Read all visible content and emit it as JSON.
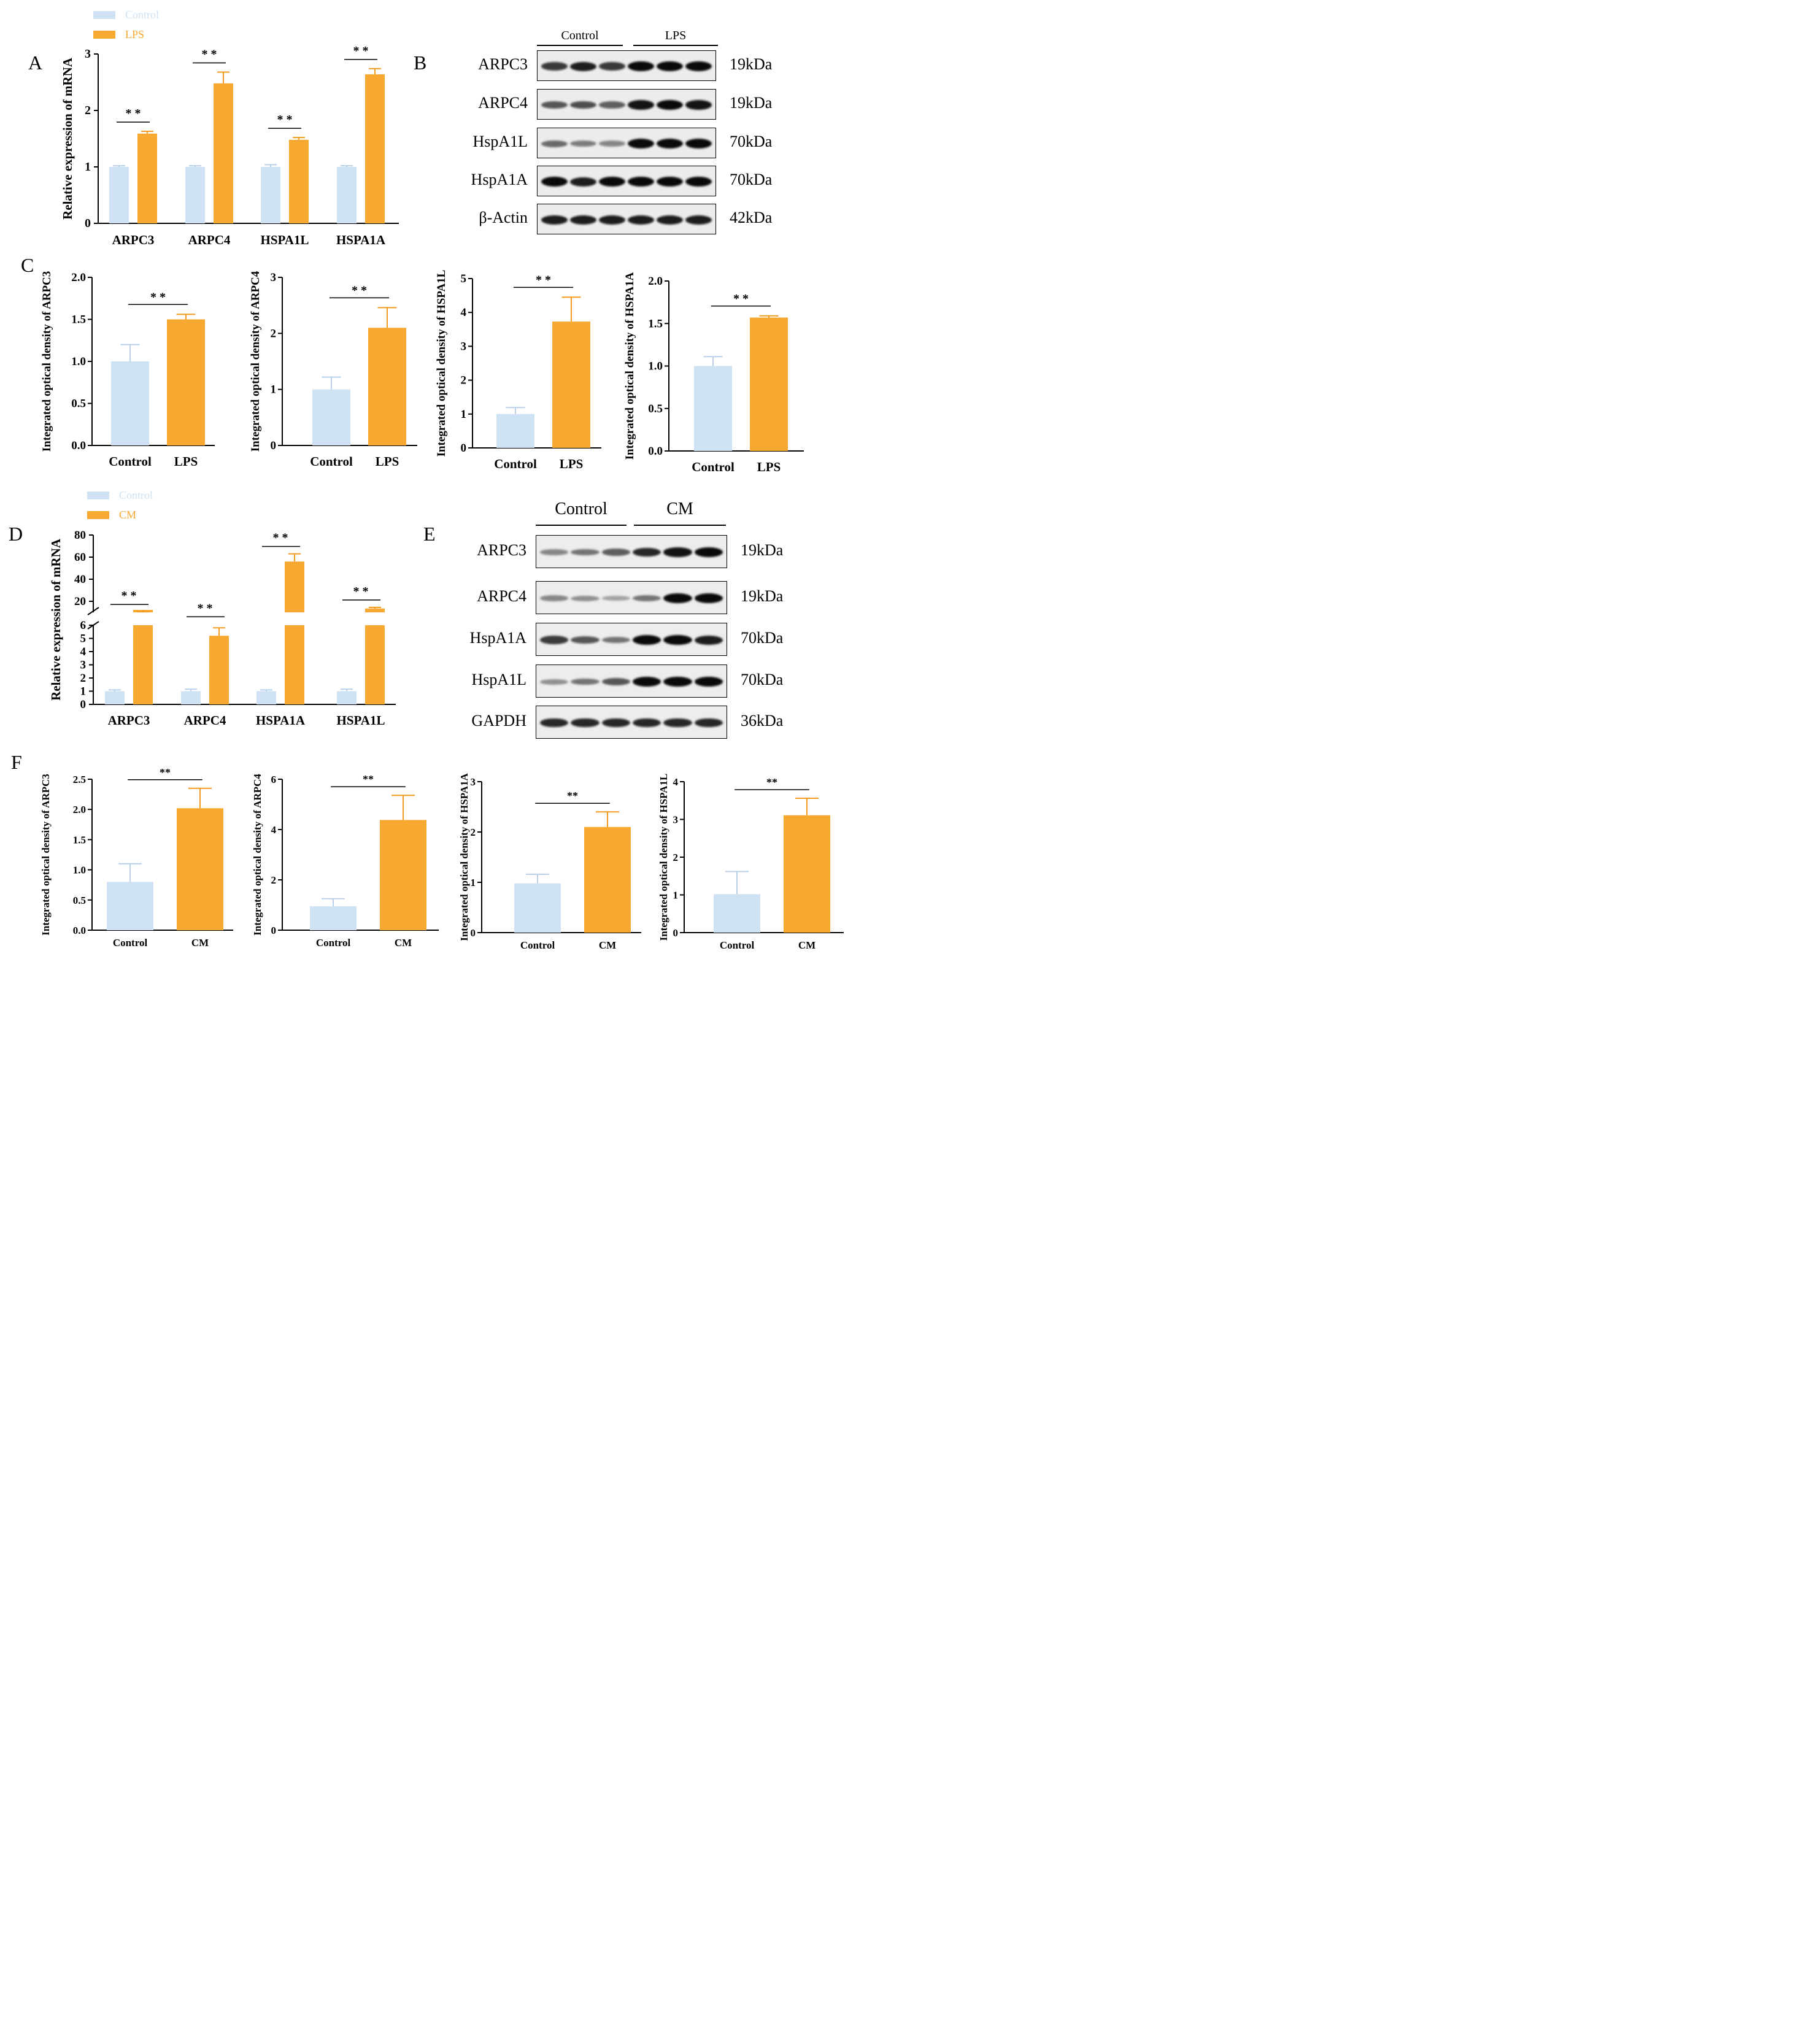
{
  "colors": {
    "control": "#cfe2f3",
    "treatment": "#f7a831",
    "axis": "#000000"
  },
  "panels": {
    "A": {
      "letter": "A",
      "legend": [
        "Control",
        "LPS"
      ]
    },
    "B": {
      "letter": "B",
      "groups": [
        "Control",
        "LPS"
      ],
      "rows": [
        {
          "protein": "ARPC3",
          "kda": "19kDa"
        },
        {
          "protein": "ARPC4",
          "kda": "19kDa"
        },
        {
          "protein": "HspA1L",
          "kda": "70kDa"
        },
        {
          "protein": "HspA1A",
          "kda": "70kDa"
        },
        {
          "protein": "β-Actin",
          "kda": "42kDa"
        }
      ],
      "intensities": [
        [
          0.75,
          0.9,
          0.75,
          1.0,
          1.0,
          1.0
        ],
        [
          0.6,
          0.65,
          0.55,
          0.95,
          1.0,
          0.95
        ],
        [
          0.5,
          0.4,
          0.35,
          1.0,
          1.0,
          1.0
        ],
        [
          1.0,
          0.9,
          1.0,
          1.0,
          1.0,
          1.0
        ],
        [
          0.9,
          0.9,
          0.9,
          0.9,
          0.9,
          0.9
        ]
      ]
    },
    "C": {
      "letter": "C"
    },
    "D": {
      "letter": "D",
      "legend": [
        "Control",
        "CM"
      ]
    },
    "E": {
      "letter": "E",
      "groups": [
        "Control",
        "CM"
      ],
      "rows": [
        {
          "protein": "ARPC3",
          "kda": "19kDa"
        },
        {
          "protein": "ARPC4",
          "kda": "19kDa"
        },
        {
          "protein": "HspA1A",
          "kda": "70kDa"
        },
        {
          "protein": "HspA1L",
          "kda": "70kDa"
        },
        {
          "protein": "GAPDH",
          "kda": "36kDa"
        }
      ],
      "intensities": [
        [
          0.35,
          0.45,
          0.55,
          0.85,
          0.95,
          1.0
        ],
        [
          0.35,
          0.3,
          0.2,
          0.45,
          1.0,
          1.0
        ],
        [
          0.75,
          0.6,
          0.45,
          1.0,
          1.0,
          0.9
        ],
        [
          0.3,
          0.45,
          0.6,
          1.0,
          1.0,
          1.0
        ],
        [
          0.85,
          0.85,
          0.85,
          0.85,
          0.85,
          0.85
        ]
      ]
    },
    "F": {
      "letter": "F"
    }
  },
  "chart_data": [
    {
      "id": "A",
      "type": "bar",
      "ylabel": "Relative expression of  mRNA",
      "categories": [
        "ARPC3",
        "ARPC4",
        "HSPA1L",
        "HSPA1A"
      ],
      "series": [
        {
          "name": "Control",
          "values": [
            1.0,
            1.0,
            1.0,
            1.0
          ],
          "errors": [
            0.02,
            0.02,
            0.04,
            0.02
          ]
        },
        {
          "name": "LPS",
          "values": [
            1.59,
            2.48,
            1.48,
            2.64
          ],
          "errors": [
            0.04,
            0.2,
            0.04,
            0.1
          ]
        }
      ],
      "ylim": [
        0,
        3
      ],
      "yticks": [
        "0",
        "1",
        "2",
        "3"
      ],
      "significance": "* *"
    },
    {
      "id": "C1",
      "type": "bar",
      "ylabel": "Integrated optical density of ARPC3",
      "categories": [
        "Control",
        "LPS"
      ],
      "values": [
        1.0,
        1.5
      ],
      "errors": [
        0.2,
        0.06
      ],
      "ylim": [
        0,
        2
      ],
      "yticks": [
        "0.0",
        "0.5",
        "1.0",
        "1.5",
        "2.0"
      ],
      "significance": "* *"
    },
    {
      "id": "C2",
      "type": "bar",
      "ylabel": "Integrated optical density of ARPC4",
      "categories": [
        "Control",
        "LPS"
      ],
      "values": [
        1.0,
        2.1
      ],
      "errors": [
        0.22,
        0.36
      ],
      "ylim": [
        0,
        3
      ],
      "yticks": [
        "0",
        "1",
        "2",
        "3"
      ],
      "significance": "* *"
    },
    {
      "id": "C3",
      "type": "bar",
      "ylabel": "Integrated optical density of HSPA1L",
      "categories": [
        "Control",
        "LPS"
      ],
      "values": [
        1.0,
        3.73
      ],
      "errors": [
        0.19,
        0.72
      ],
      "ylim": [
        0,
        5
      ],
      "yticks": [
        "0",
        "1",
        "2",
        "3",
        "4",
        "5"
      ],
      "significance": "* *"
    },
    {
      "id": "C4",
      "type": "bar",
      "ylabel": "Integrated optical density of HSPA1A",
      "categories": [
        "Control",
        "LPS"
      ],
      "values": [
        1.0,
        1.57
      ],
      "errors": [
        0.11,
        0.02
      ],
      "ylim": [
        0,
        2
      ],
      "yticks": [
        "0.0",
        "0.5",
        "1.0",
        "1.5",
        "2.0"
      ],
      "significance": "* *"
    },
    {
      "id": "D",
      "type": "bar",
      "ylabel": "Relative expression of  mRNA",
      "categories": [
        "ARPC3",
        "ARPC4",
        "HSPA1A",
        "HSPA1L"
      ],
      "series": [
        {
          "name": "Control",
          "values": [
            1.0,
            1.0,
            1.0,
            1.0
          ],
          "errors": [
            0.1,
            0.15,
            0.1,
            0.15
          ]
        },
        {
          "name": "CM",
          "values": [
            10.0,
            5.2,
            56.0,
            13.5
          ],
          "errors": [
            0.5,
            0.6,
            7.0,
            1.0
          ]
        }
      ],
      "axis_break": [
        6,
        10
      ],
      "yticks_lower": [
        "0",
        "1",
        "2",
        "3",
        "4",
        "5",
        "6"
      ],
      "yticks_upper": [
        "20",
        "40",
        "60",
        "80"
      ],
      "significance": "* *"
    },
    {
      "id": "F1",
      "type": "bar",
      "ylabel": "Integrated optical density of ARPC3",
      "categories": [
        "Control",
        "CM"
      ],
      "values": [
        0.8,
        2.02
      ],
      "errors": [
        0.3,
        0.33
      ],
      "ylim": [
        0,
        2.5
      ],
      "yticks": [
        "0.0",
        "0.5",
        "1.0",
        "1.5",
        "2.0",
        "2.5"
      ],
      "significance": "**"
    },
    {
      "id": "F2",
      "type": "bar",
      "ylabel": "Integrated optical density of ARPC4",
      "categories": [
        "Control",
        "CM"
      ],
      "values": [
        0.95,
        4.38
      ],
      "errors": [
        0.3,
        0.98
      ],
      "ylim": [
        0,
        6
      ],
      "yticks": [
        "0",
        "2",
        "4",
        "6"
      ],
      "significance": "**"
    },
    {
      "id": "F3",
      "type": "bar",
      "ylabel": "Integrated optical density of HSPA1A",
      "categories": [
        "Control",
        "CM"
      ],
      "values": [
        0.98,
        2.1
      ],
      "errors": [
        0.18,
        0.3
      ],
      "ylim": [
        0,
        3
      ],
      "yticks": [
        "0",
        "1",
        "2",
        "3"
      ],
      "significance": "**"
    },
    {
      "id": "F4",
      "type": "bar",
      "ylabel": "Integrated optical density of HSPA1L",
      "categories": [
        "Control",
        "CM"
      ],
      "values": [
        1.02,
        3.11
      ],
      "errors": [
        0.6,
        0.45
      ],
      "ylim": [
        0,
        4
      ],
      "yticks": [
        "0",
        "1",
        "2",
        "3",
        "4"
      ],
      "significance": "**"
    }
  ]
}
